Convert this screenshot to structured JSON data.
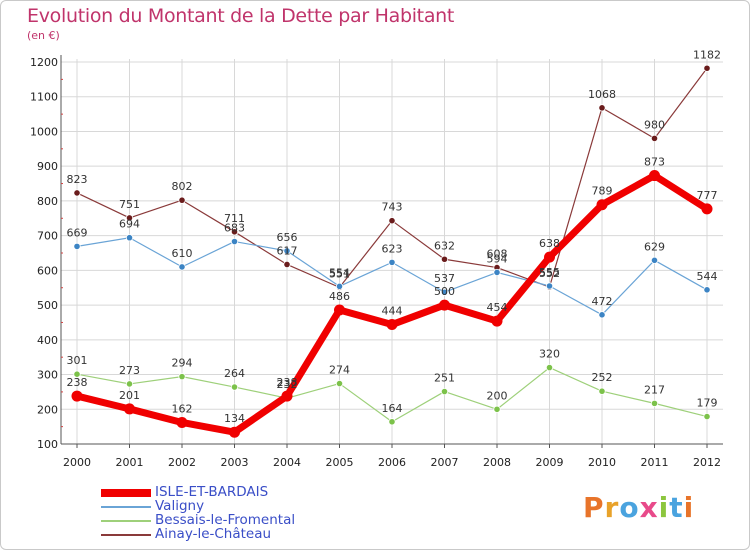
{
  "header": {
    "title": "Evolution du Montant de la Dette par Habitant",
    "subtitle": "(en €)"
  },
  "logo": {
    "text": "Proxiti",
    "letters": [
      {
        "ch": "P",
        "color": "#e8742a"
      },
      {
        "ch": "r",
        "color": "#e8a22a"
      },
      {
        "ch": "o",
        "color": "#4aa3df"
      },
      {
        "ch": "x",
        "color": "#e84a8a"
      },
      {
        "ch": "i",
        "color": "#8cc63e"
      },
      {
        "ch": "t",
        "color": "#4aa3df"
      },
      {
        "ch": "i",
        "color": "#e8742a"
      }
    ]
  },
  "chart_data": {
    "type": "line",
    "title": "Evolution du Montant de la Dette par Habitant",
    "subtitle": "(en €)",
    "xlabel": "",
    "ylabel": "",
    "x": [
      "2000",
      "2001",
      "2002",
      "2003",
      "2004",
      "2005",
      "2006",
      "2007",
      "2008",
      "2009",
      "2010",
      "2011",
      "2012"
    ],
    "ylim": [
      100,
      1200
    ],
    "yticks": [
      100,
      200,
      300,
      400,
      500,
      600,
      700,
      800,
      900,
      1000,
      1100,
      1200
    ],
    "grid": true,
    "legend_position": "bottom-left",
    "series": [
      {
        "name": "ISLE-ET-BARDAIS",
        "color": "#f00000",
        "marker_color": "#f00000",
        "width": 7,
        "values": [
          238,
          201,
          162,
          134,
          238,
          486,
          444,
          500,
          454,
          638,
          789,
          873,
          777
        ],
        "labels": [
          "238",
          "201",
          "162",
          "134",
          "238",
          "486",
          "444",
          "500",
          "454",
          "638",
          "789",
          "873",
          "777"
        ]
      },
      {
        "name": "Valigny",
        "color": "#6aa4d6",
        "marker_color": "#3c84c4",
        "width": 1.2,
        "values": [
          669,
          694,
          610,
          683,
          656,
          554,
          623,
          537,
          594,
          555,
          472,
          629,
          544
        ],
        "labels": [
          "669",
          "694",
          "610",
          "683",
          "656",
          "554",
          "623",
          "537",
          "594",
          "555",
          "472",
          "629",
          "544"
        ]
      },
      {
        "name": "Bessais-le-Fromental",
        "color": "#9ed07a",
        "marker_color": "#7cc24a",
        "width": 1.2,
        "values": [
          301,
          273,
          294,
          264,
          232,
          274,
          164,
          251,
          200,
          320,
          252,
          217,
          179
        ],
        "labels": [
          "301",
          "273",
          "294",
          "264",
          "232",
          "274",
          "164",
          "251",
          "200",
          "320",
          "252",
          "217",
          "179"
        ]
      },
      {
        "name": "Ainay-le-Château",
        "color": "#8a3a3a",
        "marker_color": "#6a1c1c",
        "width": 1.2,
        "values": [
          823,
          751,
          802,
          711,
          617,
          551,
          743,
          632,
          608,
          552,
          1068,
          980,
          1182
        ],
        "labels": [
          "823",
          "751",
          "802",
          "711",
          "617",
          "551",
          "743",
          "632",
          "608",
          "552",
          "1068",
          "980",
          "1182"
        ]
      }
    ]
  }
}
